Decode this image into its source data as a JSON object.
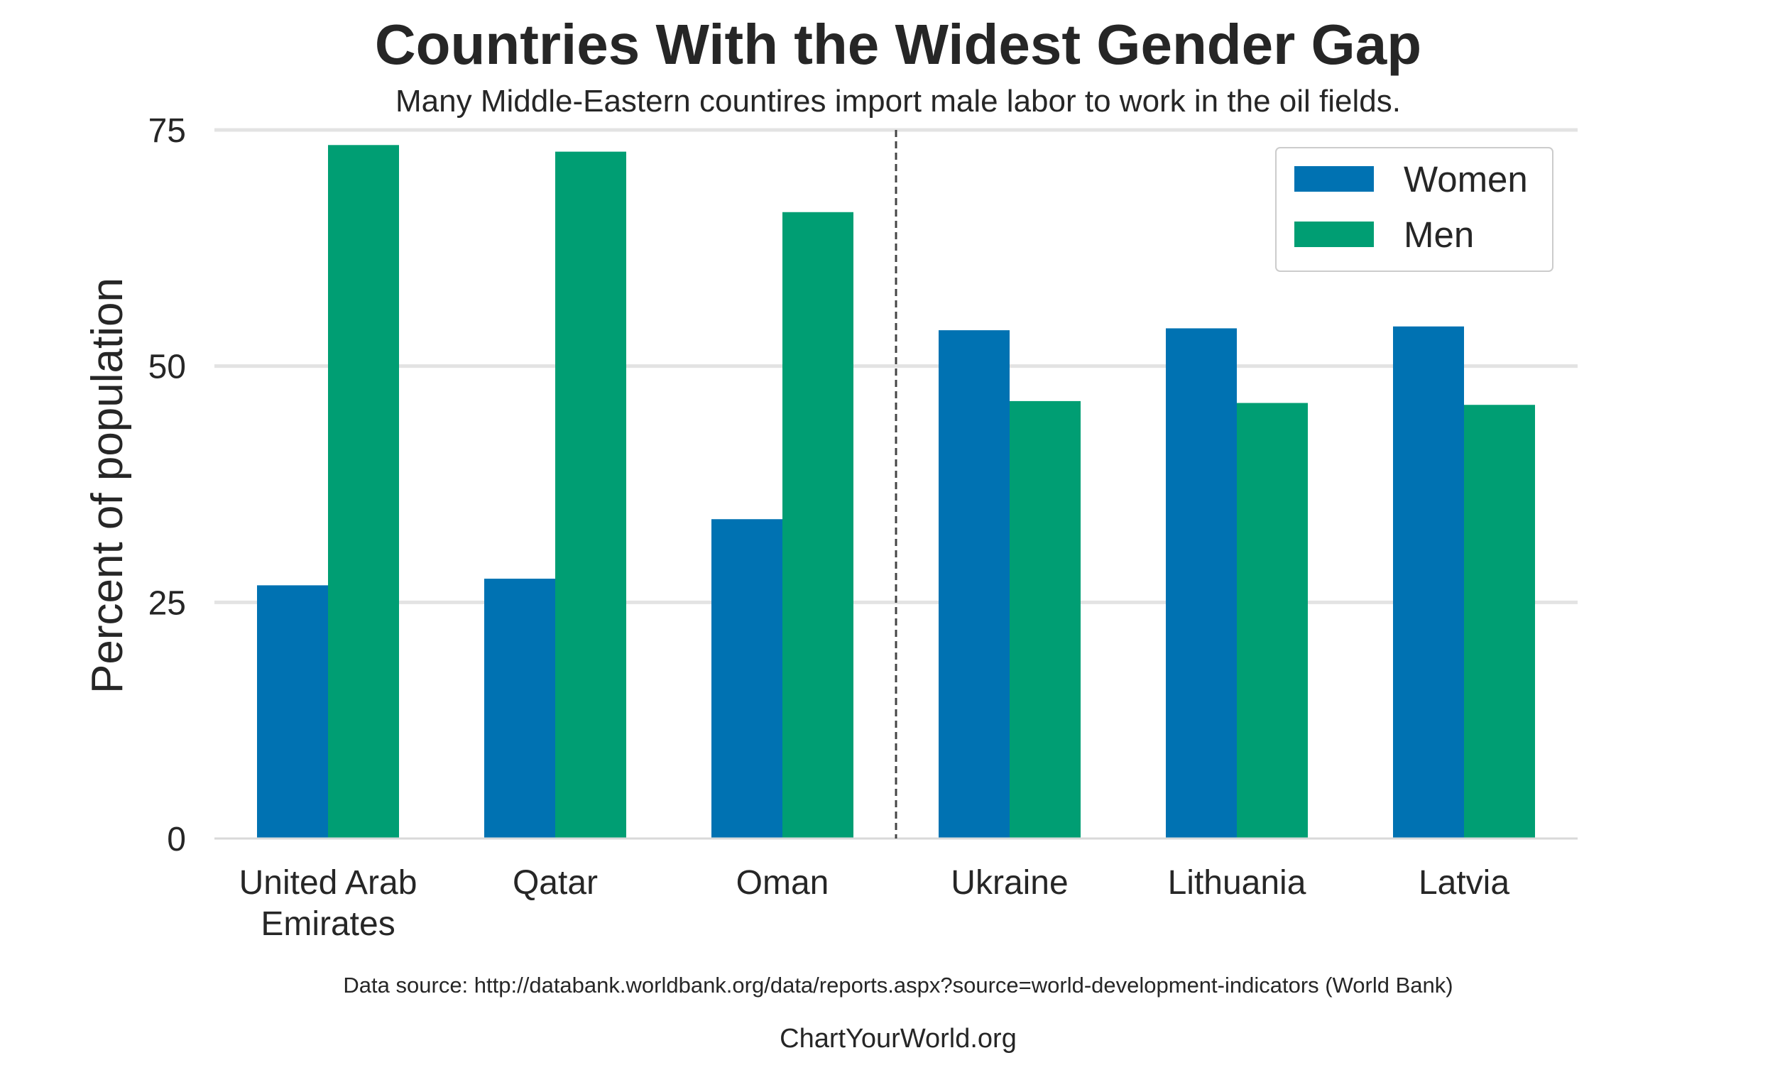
{
  "chart_data": {
    "type": "bar",
    "title": "Countries With the Widest Gender Gap",
    "subtitle": "Many Middle-Eastern countires import male labor to work in the oil fields.",
    "xlabel": "",
    "ylabel": "Percent of population",
    "ylim": [
      0,
      75
    ],
    "yticks": [
      "0",
      "25",
      "50",
      "75"
    ],
    "categories": [
      [
        "United Arab",
        "Emirates"
      ],
      [
        "Qatar"
      ],
      [
        "Oman"
      ],
      [
        "Ukraine"
      ],
      [
        "Lithuania"
      ],
      [
        "Latvia"
      ]
    ],
    "series": [
      {
        "name": "Women",
        "color": "#0072b2",
        "values": [
          26.8,
          27.5,
          33.8,
          53.8,
          54.0,
          54.2
        ]
      },
      {
        "name": "Men",
        "color": "#009e73",
        "values": [
          73.4,
          72.7,
          66.3,
          46.3,
          46.1,
          45.9
        ]
      }
    ],
    "divider_after_category": 2,
    "grid": true,
    "legend_position": "top-right",
    "source_note": "Data source: http://databank.worldbank.org/data/reports.aspx?source=world-development-indicators (World Bank)",
    "credit": "ChartYourWorld.org"
  }
}
